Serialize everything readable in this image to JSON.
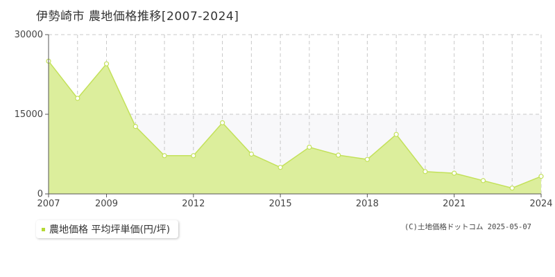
{
  "page": {
    "title": "伊勢崎市 農地価格推移[2007-2024]",
    "legend_label": "農地価格 平均坪単価(円/坪)",
    "copyright": "(C)土地価格ドットコム 2025-05-07"
  },
  "colors": {
    "fill": "#dcee9c",
    "line": "#c3e15a",
    "marker_fill": "#ffffff",
    "band": "#f8f8fa",
    "grid": "#c8c8c8",
    "legend_swatch": "#b5d936"
  },
  "chart_data": {
    "type": "area",
    "x": [
      2007,
      2008,
      2009,
      2010,
      2011,
      2012,
      2013,
      2014,
      2015,
      2016,
      2017,
      2018,
      2019,
      2020,
      2021,
      2022,
      2023,
      2024
    ],
    "series": [
      {
        "values": [
          25000,
          18000,
          24500,
          12700,
          7200,
          7200,
          13400,
          7500,
          5000,
          8800,
          7300,
          6500,
          11200,
          4200,
          3900,
          2500,
          1100,
          3300
        ]
      }
    ],
    "x_tick_labels": [
      "2007",
      "2009",
      "2012",
      "2015",
      "2018",
      "2021",
      "2024"
    ],
    "y_ticks": [
      0,
      15000,
      30000
    ],
    "y_tick_labels": [
      "0",
      "15000",
      "30000"
    ],
    "xlim": [
      2007,
      2024
    ],
    "ylim": [
      0,
      30000
    ],
    "grid": true,
    "legend_position": "bottom-left"
  }
}
